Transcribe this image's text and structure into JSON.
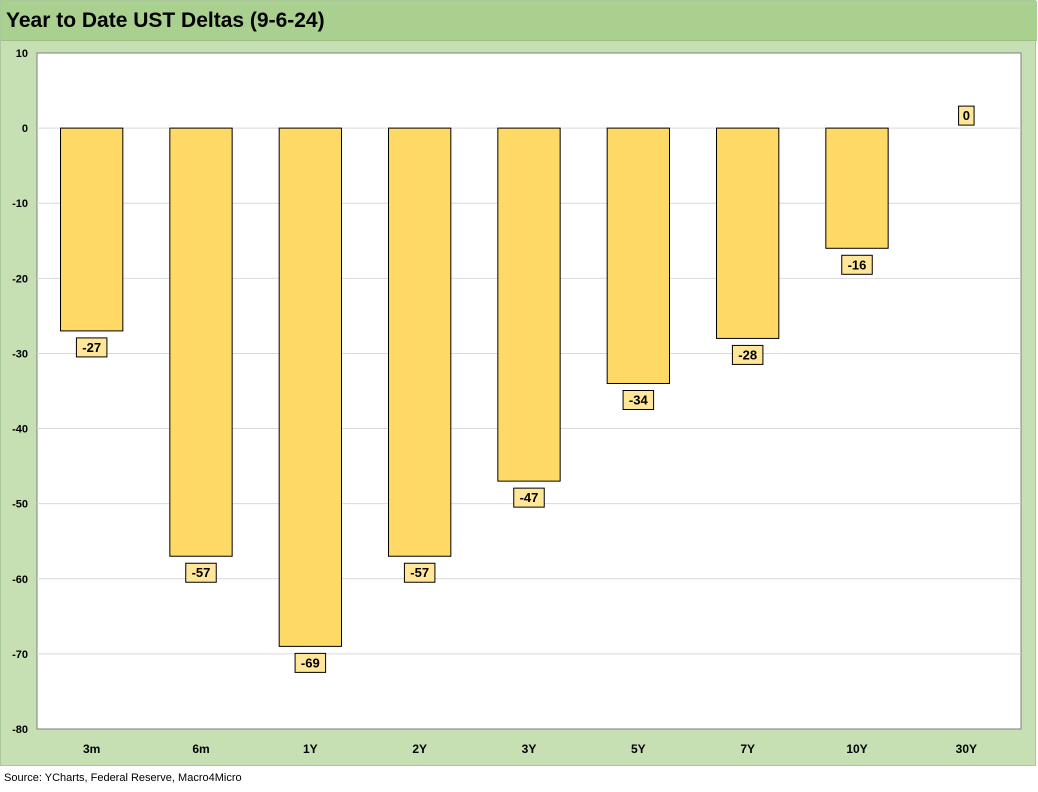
{
  "title": "Year to Date UST Deltas (9-6-24)",
  "source": "Source: YCharts, Federal Reserve, Macro4Micro",
  "colors": {
    "bar_fill": "#ffd966",
    "bar_stroke": "#000000",
    "frame_bg": "#c6e0b4",
    "title_bg": "#a9d08e",
    "label_bg": "#ffe699"
  },
  "chart_data": {
    "type": "bar",
    "title": "Year to Date UST Deltas (9-6-24)",
    "categories": [
      "3m",
      "6m",
      "1Y",
      "2Y",
      "3Y",
      "5Y",
      "7Y",
      "10Y",
      "30Y"
    ],
    "values": [
      -27,
      -57,
      -69,
      -57,
      -47,
      -34,
      -28,
      -16,
      0
    ],
    "data_labels": [
      "-27",
      "-57",
      "-69",
      "-57",
      "-47",
      "-34",
      "-28",
      "-16",
      "0"
    ],
    "ylim": [
      -80,
      10
    ],
    "yticks": [
      10,
      0,
      -10,
      -20,
      -30,
      -40,
      -50,
      -60,
      -70,
      -80
    ],
    "ytick_labels": [
      "10",
      "0",
      "-10",
      "-20",
      "-30",
      "-40",
      "-50",
      "-60",
      "-70",
      "-80"
    ],
    "grid": true,
    "legend": "none",
    "xlabel": "",
    "ylabel": ""
  }
}
